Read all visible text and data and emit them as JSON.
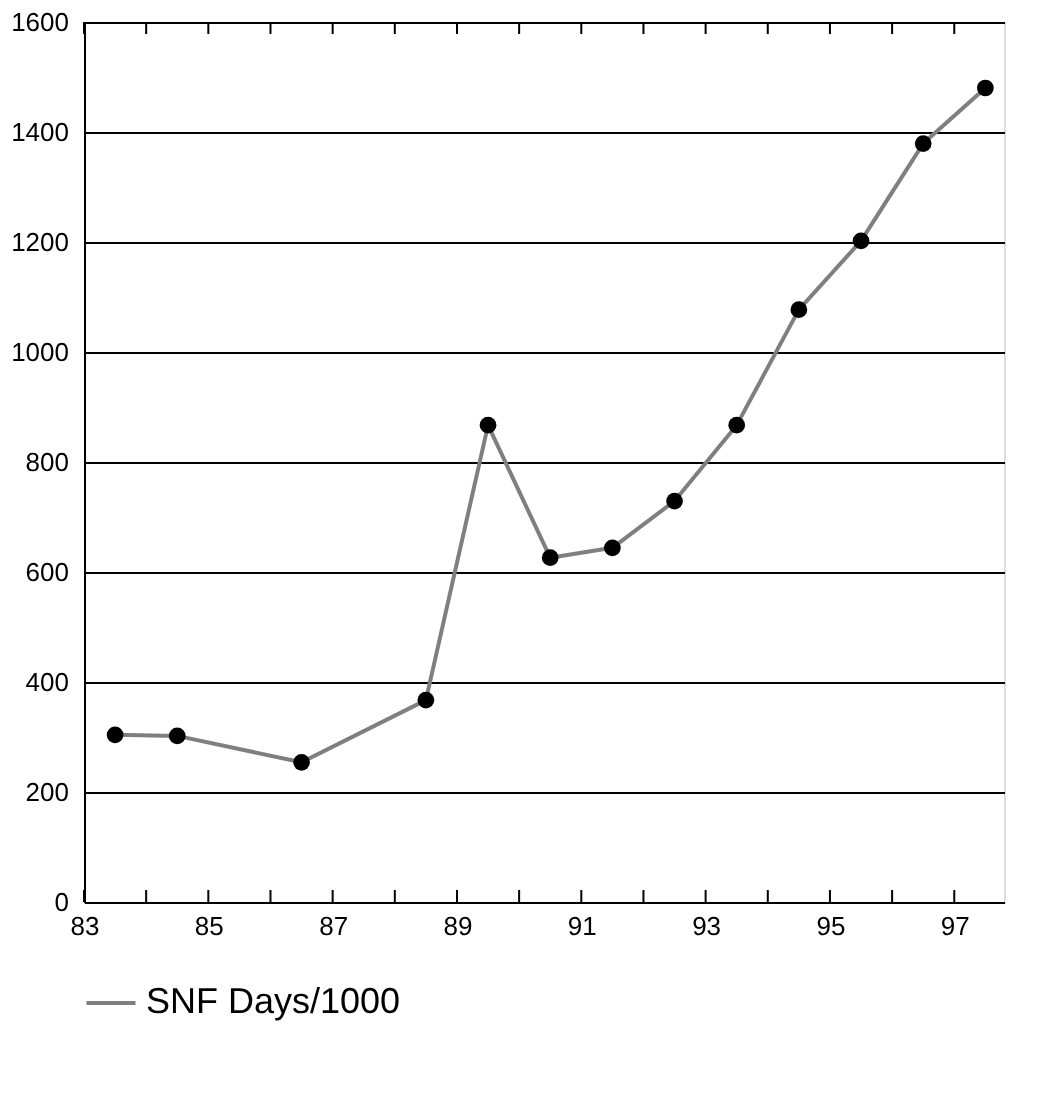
{
  "chart_data": {
    "type": "line",
    "x": [
      83.5,
      84.5,
      86.5,
      88.5,
      89.5,
      90.5,
      91.5,
      92.5,
      93.5,
      94.5,
      95.5,
      96.5,
      97.5
    ],
    "series": [
      {
        "name": "SNF Days/1000",
        "color": "#7f7f7f",
        "values": [
          304,
          302,
          254,
          367,
          867,
          626,
          644,
          729,
          867,
          1077,
          1202,
          1379,
          1480
        ]
      }
    ],
    "xlim": [
      83,
      97.8
    ],
    "xticks": [
      83,
      {
        "value": 84,
        "label": null
      },
      85,
      {
        "value": 86,
        "label": null
      },
      87,
      {
        "value": 88,
        "label": null
      },
      89,
      {
        "value": 90,
        "label": null
      },
      91,
      {
        "value": 92,
        "label": null
      },
      93,
      {
        "value": 94,
        "label": null
      },
      95,
      {
        "value": 96,
        "label": null
      },
      97
    ],
    "ylim": [
      0,
      1600
    ],
    "yticks": [
      0,
      200,
      400,
      600,
      800,
      1000,
      1200,
      1400,
      1600
    ],
    "grid": "y",
    "legend": "bottom",
    "marker": "circle",
    "line_style": "solid"
  }
}
